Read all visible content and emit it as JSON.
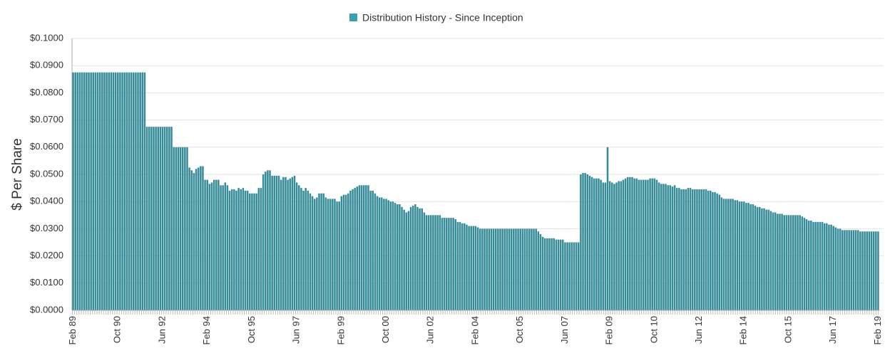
{
  "chart_data": {
    "type": "bar",
    "legend_title": "Distribution History - Since Inception",
    "y_label": "$ Per Share",
    "color": "#368b99",
    "legend_color": "#3aa0b1",
    "grid": true,
    "ylim": [
      0,
      0.1
    ],
    "yticks": [
      {
        "value": 0,
        "label": "$0.0000"
      },
      {
        "value": 0.01,
        "label": "$0.0100"
      },
      {
        "value": 0.02,
        "label": "$0.0200"
      },
      {
        "value": 0.03,
        "label": "$0.0300"
      },
      {
        "value": 0.04,
        "label": "$0.0400"
      },
      {
        "value": 0.05,
        "label": "$0.0500"
      },
      {
        "value": 0.06,
        "label": "$0.0600"
      },
      {
        "value": 0.07,
        "label": "$0.0700"
      },
      {
        "value": 0.08,
        "label": "$0.0800"
      },
      {
        "value": 0.09,
        "label": "$0.0900"
      },
      {
        "value": 0.1,
        "label": "$0.1000"
      }
    ],
    "categories": [
      "Feb 89",
      null,
      null,
      null,
      null,
      null,
      null,
      null,
      null,
      null,
      null,
      null,
      null,
      null,
      null,
      null,
      null,
      null,
      null,
      null,
      "Oct 90",
      null,
      null,
      null,
      null,
      null,
      null,
      null,
      null,
      null,
      null,
      null,
      null,
      null,
      null,
      null,
      null,
      null,
      null,
      null,
      "Jun 92",
      null,
      null,
      null,
      null,
      null,
      null,
      null,
      null,
      null,
      null,
      null,
      null,
      null,
      null,
      null,
      null,
      null,
      null,
      null,
      "Feb 94",
      null,
      null,
      null,
      null,
      null,
      null,
      null,
      null,
      null,
      null,
      null,
      null,
      null,
      null,
      null,
      null,
      null,
      null,
      null,
      "Oct 95",
      null,
      null,
      null,
      null,
      null,
      null,
      null,
      null,
      null,
      null,
      null,
      null,
      null,
      null,
      null,
      null,
      null,
      null,
      null,
      "Jun 97",
      null,
      null,
      null,
      null,
      null,
      null,
      null,
      null,
      null,
      null,
      null,
      null,
      null,
      null,
      null,
      null,
      null,
      null,
      null,
      "Feb 99",
      null,
      null,
      null,
      null,
      null,
      null,
      null,
      null,
      null,
      null,
      null,
      null,
      null,
      null,
      null,
      null,
      null,
      null,
      null,
      "Oct 00",
      null,
      null,
      null,
      null,
      null,
      null,
      null,
      null,
      null,
      null,
      null,
      null,
      null,
      null,
      null,
      null,
      null,
      null,
      null,
      "Jun 02",
      null,
      null,
      null,
      null,
      null,
      null,
      null,
      null,
      null,
      null,
      null,
      null,
      null,
      null,
      null,
      null,
      null,
      null,
      null,
      "Feb 04",
      null,
      null,
      null,
      null,
      null,
      null,
      null,
      null,
      null,
      null,
      null,
      null,
      null,
      null,
      null,
      null,
      null,
      null,
      null,
      "Oct 05",
      null,
      null,
      null,
      null,
      null,
      null,
      null,
      null,
      null,
      null,
      null,
      null,
      null,
      null,
      null,
      null,
      null,
      null,
      null,
      "Jun 07",
      null,
      null,
      null,
      null,
      null,
      null,
      null,
      null,
      null,
      null,
      null,
      null,
      null,
      null,
      null,
      null,
      null,
      null,
      null,
      "Feb 09",
      null,
      null,
      null,
      null,
      null,
      null,
      null,
      null,
      null,
      null,
      null,
      null,
      null,
      null,
      null,
      null,
      null,
      null,
      null,
      "Oct 10",
      null,
      null,
      null,
      null,
      null,
      null,
      null,
      null,
      null,
      null,
      null,
      null,
      null,
      null,
      null,
      null,
      null,
      null,
      null,
      "Jun 12",
      null,
      null,
      null,
      null,
      null,
      null,
      null,
      null,
      null,
      null,
      null,
      null,
      null,
      null,
      null,
      null,
      null,
      null,
      null,
      "Feb 14",
      null,
      null,
      null,
      null,
      null,
      null,
      null,
      null,
      null,
      null,
      null,
      null,
      null,
      null,
      null,
      null,
      null,
      null,
      null,
      "Oct 15",
      null,
      null,
      null,
      null,
      null,
      null,
      null,
      null,
      null,
      null,
      null,
      null,
      null,
      null,
      null,
      null,
      null,
      null,
      null,
      "Jun 17",
      null,
      null,
      null,
      null,
      null,
      null,
      null,
      null,
      null,
      null,
      null,
      null,
      null,
      null,
      null,
      null,
      null,
      null,
      null,
      "Feb 19"
    ],
    "values": [
      0.0875,
      0.0875,
      0.0875,
      0.0875,
      0.0875,
      0.0875,
      0.0875,
      0.0875,
      0.0875,
      0.0875,
      0.0875,
      0.0875,
      0.0875,
      0.0875,
      0.0875,
      0.0875,
      0.0875,
      0.0875,
      0.0875,
      0.0875,
      0.0875,
      0.0875,
      0.0875,
      0.0875,
      0.0875,
      0.0875,
      0.0875,
      0.0875,
      0.0875,
      0.0875,
      0.0875,
      0.0875,
      0.0875,
      0.0675,
      0.0675,
      0.0675,
      0.0675,
      0.0675,
      0.0675,
      0.0675,
      0.0675,
      0.0675,
      0.0675,
      0.0675,
      0.0675,
      0.06,
      0.06,
      0.06,
      0.06,
      0.06,
      0.06,
      0.06,
      0.0525,
      0.0515,
      0.0505,
      0.052,
      0.0525,
      0.053,
      0.053,
      0.048,
      0.048,
      0.0465,
      0.047,
      0.048,
      0.048,
      0.048,
      0.046,
      0.046,
      0.047,
      0.046,
      0.044,
      0.0445,
      0.0445,
      0.044,
      0.045,
      0.0445,
      0.045,
      0.044,
      0.044,
      0.043,
      0.043,
      0.043,
      0.043,
      0.045,
      0.045,
      0.05,
      0.051,
      0.0515,
      0.0515,
      0.0495,
      0.0495,
      0.0495,
      0.0495,
      0.048,
      0.049,
      0.049,
      0.048,
      0.0485,
      0.049,
      0.0495,
      0.047,
      0.046,
      0.045,
      0.044,
      0.045,
      0.044,
      0.043,
      0.042,
      0.041,
      0.0415,
      0.043,
      0.043,
      0.043,
      0.0415,
      0.041,
      0.041,
      0.041,
      0.041,
      0.04,
      0.04,
      0.042,
      0.0425,
      0.0425,
      0.043,
      0.044,
      0.0445,
      0.045,
      0.0455,
      0.046,
      0.046,
      0.046,
      0.046,
      0.046,
      0.044,
      0.044,
      0.043,
      0.042,
      0.0415,
      0.0415,
      0.041,
      0.041,
      0.0405,
      0.04,
      0.04,
      0.0395,
      0.039,
      0.039,
      0.038,
      0.037,
      0.036,
      0.0365,
      0.038,
      0.0385,
      0.039,
      0.038,
      0.0375,
      0.0375,
      0.036,
      0.035,
      0.035,
      0.035,
      0.035,
      0.035,
      0.035,
      0.035,
      0.034,
      0.034,
      0.034,
      0.034,
      0.034,
      0.034,
      0.0335,
      0.0325,
      0.0325,
      0.032,
      0.032,
      0.0315,
      0.031,
      0.031,
      0.031,
      0.031,
      0.0305,
      0.03,
      0.03,
      0.03,
      0.03,
      0.03,
      0.03,
      0.03,
      0.03,
      0.03,
      0.03,
      0.03,
      0.03,
      0.03,
      0.03,
      0.03,
      0.03,
      0.03,
      0.03,
      0.03,
      0.03,
      0.03,
      0.03,
      0.03,
      0.03,
      0.03,
      0.03,
      0.029,
      0.028,
      0.027,
      0.0265,
      0.0265,
      0.0265,
      0.0265,
      0.0265,
      0.026,
      0.026,
      0.026,
      0.026,
      0.025,
      0.025,
      0.025,
      0.025,
      0.025,
      0.025,
      0.025,
      0.05,
      0.0505,
      0.0505,
      0.05,
      0.0495,
      0.049,
      0.0485,
      0.0485,
      0.0485,
      0.048,
      0.047,
      0.047,
      0.06,
      0.0475,
      0.047,
      0.0465,
      0.047,
      0.0475,
      0.0475,
      0.048,
      0.0485,
      0.049,
      0.049,
      0.049,
      0.0485,
      0.0485,
      0.048,
      0.048,
      0.048,
      0.048,
      0.048,
      0.0485,
      0.0485,
      0.0485,
      0.048,
      0.047,
      0.0465,
      0.0465,
      0.0465,
      0.046,
      0.046,
      0.0455,
      0.046,
      0.045,
      0.045,
      0.0445,
      0.0445,
      0.0445,
      0.045,
      0.045,
      0.0445,
      0.0445,
      0.0445,
      0.0445,
      0.0445,
      0.0445,
      0.0445,
      0.044,
      0.044,
      0.0435,
      0.0435,
      0.043,
      0.0425,
      0.0415,
      0.041,
      0.041,
      0.041,
      0.041,
      0.041,
      0.0405,
      0.0405,
      0.04,
      0.04,
      0.04,
      0.0395,
      0.0395,
      0.039,
      0.039,
      0.0385,
      0.038,
      0.038,
      0.0375,
      0.0375,
      0.037,
      0.037,
      0.0365,
      0.036,
      0.036,
      0.0355,
      0.0355,
      0.0355,
      0.035,
      0.035,
      0.035,
      0.035,
      0.035,
      0.035,
      0.035,
      0.035,
      0.0345,
      0.034,
      0.0335,
      0.033,
      0.033,
      0.0325,
      0.0325,
      0.0325,
      0.0325,
      0.0325,
      0.032,
      0.032,
      0.0315,
      0.0315,
      0.031,
      0.0305,
      0.03,
      0.03,
      0.0295,
      0.0295,
      0.0295,
      0.0295,
      0.0295,
      0.0295,
      0.0295,
      0.0295,
      0.029,
      0.029,
      0.029,
      0.029,
      0.029,
      0.029,
      0.029,
      0.029,
      0.029
    ]
  }
}
